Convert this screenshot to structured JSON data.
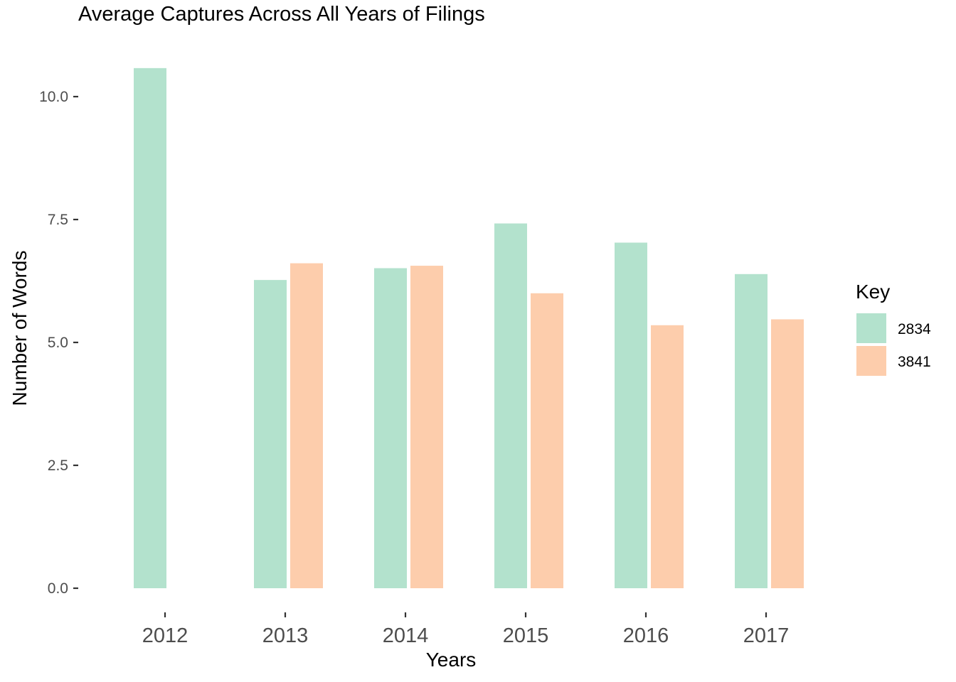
{
  "chart_data": {
    "type": "bar",
    "title": "Average Captures Across All Years of Filings",
    "xlabel": "Years",
    "ylabel": "Number of Words",
    "categories": [
      "2012",
      "2013",
      "2014",
      "2015",
      "2016",
      "2017"
    ],
    "series": [
      {
        "name": "2834",
        "color": "#b3e2cd",
        "values": [
          10.58,
          6.27,
          6.51,
          7.42,
          7.03,
          6.39
        ]
      },
      {
        "name": "3841",
        "color": "#fdcdac",
        "values": [
          null,
          6.61,
          6.56,
          6.0,
          5.35,
          5.47
        ]
      }
    ],
    "ylim": [
      0,
      10.6
    ],
    "yticks": [
      0,
      2.5,
      5,
      7.5,
      10
    ],
    "ytick_labels": [
      "0.0",
      "2.5",
      "5.0",
      "7.5",
      "10.0"
    ],
    "grid": false,
    "legend": {
      "title": "Key",
      "placement": "right"
    }
  }
}
